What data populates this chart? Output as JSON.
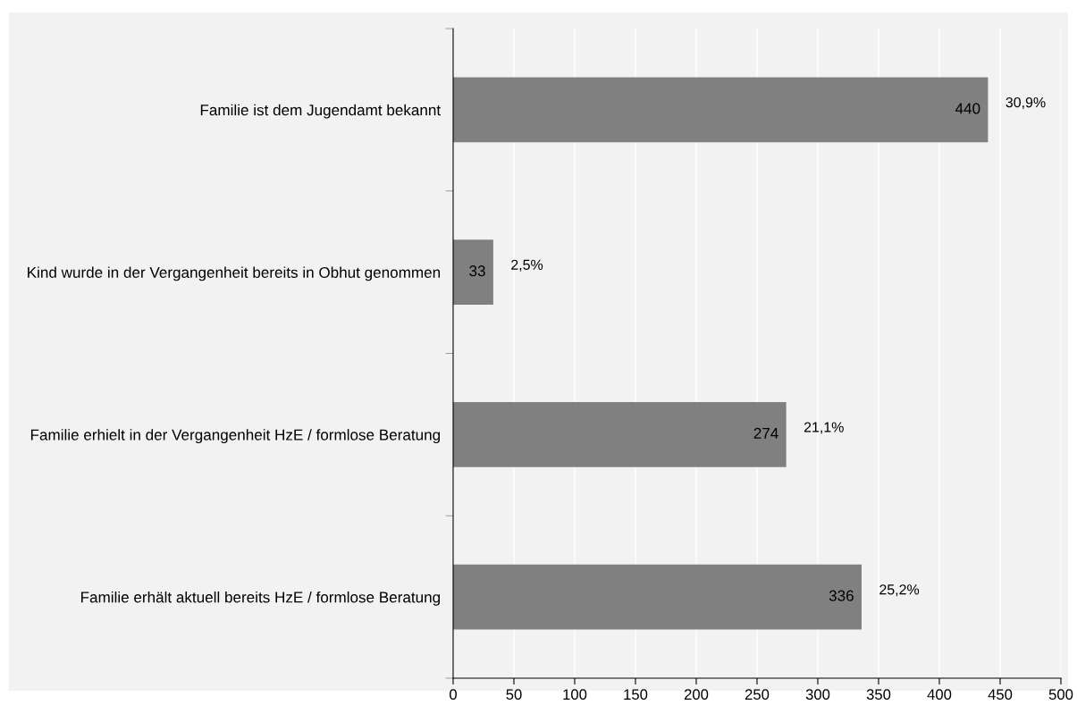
{
  "chart_data": {
    "type": "bar",
    "orientation": "horizontal",
    "categories": [
      "Familie ist dem Jugendamt bekannt",
      "Kind wurde in der Vergangenheit bereits in Obhut genommen",
      "Familie erhielt in der Vergangenheit HzE / formlose Beratung",
      "Familie erhält aktuell bereits HzE / formlose Beratung"
    ],
    "values": [
      440,
      33,
      274,
      336
    ],
    "color": "#808080",
    "xlim": [
      0,
      500
    ],
    "xticks": [
      0,
      50,
      100,
      150,
      200,
      250,
      300,
      350,
      400,
      450,
      500
    ],
    "grid": "x",
    "data_labels": true,
    "annotations": [
      {
        "text": "30,9%",
        "x": 440,
        "y": "Familie ist dem Jugendamt bekannt"
      },
      {
        "text": "2,5%",
        "x": 33,
        "y": "Kind wurde in der Vergangenheit bereits in Obhut genommen"
      },
      {
        "text": "21,1%",
        "x": 274,
        "y": "Familie erhielt in der Vergangenheit HzE / formlose Beratung"
      },
      {
        "text": "25,2%",
        "x": 336,
        "y": "Familie erhält aktuell bereits HzE / formlose Beratung"
      }
    ]
  }
}
